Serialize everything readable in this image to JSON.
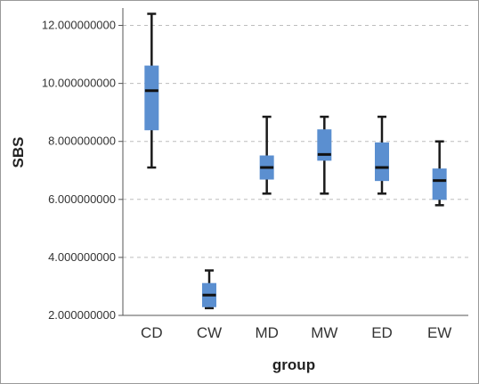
{
  "chart_data": {
    "type": "boxplot",
    "title": "",
    "xlabel": "group",
    "ylabel": "SBS",
    "ylim": [
      2.0,
      12.6
    ],
    "yticks": [
      2,
      4,
      6,
      8,
      10,
      12
    ],
    "ytick_labels": [
      "2.000000000",
      "4.000000000",
      "6.000000000",
      "8.000000000",
      "10.000000000",
      "12.000000000"
    ],
    "grid": "horizontal dashed",
    "box_color": "#5b8fd0",
    "categories": [
      "CD",
      "CW",
      "MD",
      "MW",
      "ED",
      "EW"
    ],
    "boxes": [
      {
        "min": 7.1,
        "q1": 8.4,
        "median": 9.75,
        "q3": 10.6,
        "max": 12.4
      },
      {
        "min": 2.25,
        "q1": 2.3,
        "median": 2.7,
        "q3": 3.1,
        "max": 3.55
      },
      {
        "min": 6.2,
        "q1": 6.7,
        "median": 7.1,
        "q3": 7.5,
        "max": 8.85
      },
      {
        "min": 6.2,
        "q1": 7.35,
        "median": 7.55,
        "q3": 8.4,
        "max": 8.85
      },
      {
        "min": 6.2,
        "q1": 6.65,
        "median": 7.1,
        "q3": 7.95,
        "max": 8.85
      },
      {
        "min": 5.8,
        "q1": 6.0,
        "median": 6.65,
        "q3": 7.05,
        "max": 8.0
      }
    ]
  }
}
